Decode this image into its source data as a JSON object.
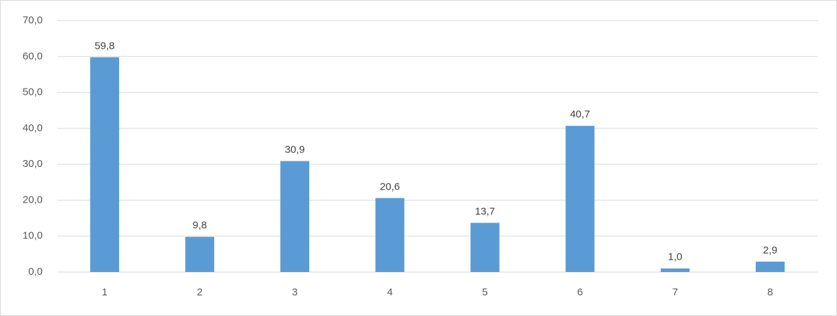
{
  "chart_data": {
    "type": "bar",
    "categories": [
      "1",
      "2",
      "3",
      "4",
      "5",
      "6",
      "7",
      "8"
    ],
    "values": [
      59.8,
      9.8,
      30.9,
      20.6,
      13.7,
      40.7,
      1.0,
      2.9
    ],
    "value_labels": [
      "59,8",
      "9,8",
      "30,9",
      "20,6",
      "13,7",
      "40,7",
      "1,0",
      "2,9"
    ],
    "color": "#5b9bd5",
    "ylim": [
      0,
      70
    ],
    "yticks": [
      {
        "value": 0,
        "label": "0,0"
      },
      {
        "value": 10,
        "label": "10,0"
      },
      {
        "value": 20,
        "label": "20,0"
      },
      {
        "value": 30,
        "label": "30,0"
      },
      {
        "value": 40,
        "label": "40,0"
      },
      {
        "value": 50,
        "label": "50,0"
      },
      {
        "value": 60,
        "label": "60,0"
      },
      {
        "value": 70,
        "label": "70,0"
      }
    ],
    "grid": true
  }
}
